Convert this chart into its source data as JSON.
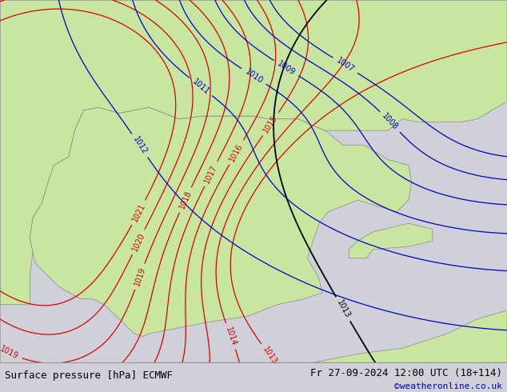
{
  "title_left": "Surface pressure [hPa] ECMWF",
  "title_right": "Fr 27-09-2024 12:00 UTC (18+114)",
  "copyright": "©weatheronline.co.uk",
  "bg_color": "#d0d0d8",
  "land_color": "#c8e6a0",
  "border_color": "#888888",
  "contour_red_color": "#dd0000",
  "contour_blue_color": "#0000cc",
  "contour_black_color": "#000000",
  "font_size_title": 9,
  "font_size_copyright": 8,
  "figwidth": 6.34,
  "figheight": 4.9,
  "dpi": 100,
  "xlim": [
    -10.5,
    6.5
  ],
  "ylim": [
    35.0,
    47.5
  ],
  "red_levels": [
    1013,
    1014,
    1015,
    1016,
    1017,
    1018,
    1019,
    1020,
    1021
  ],
  "blue_levels": [
    1007,
    1008,
    1009,
    1010,
    1011,
    1012,
    1013
  ],
  "black_levels": [
    1013
  ],
  "label_fontsize": 7,
  "bottom_bar_height": 0.075
}
